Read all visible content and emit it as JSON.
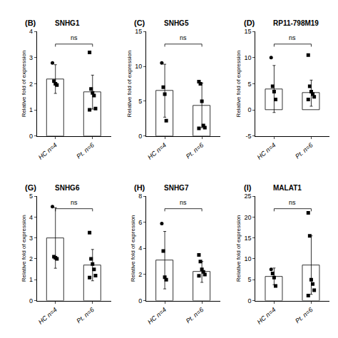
{
  "chart_data": [
    {
      "type": "bar",
      "title": "SNHG1",
      "ylabel": "Relative fold of expression",
      "categories": [
        "HC n=4",
        "Pt. n=6"
      ],
      "ylim": [
        0,
        4
      ],
      "yticks": [
        0,
        1,
        2,
        3,
        4
      ],
      "grid": false,
      "series": [
        {
          "type": "bar",
          "color": "#ffffff",
          "values": [
            2.18,
            1.68
          ],
          "errors": [
            0.55,
            0.65
          ]
        },
        {
          "type": "scatter",
          "marker": "circle",
          "color": "#000000",
          "x": [
            "HC n=4"
          ],
          "values": [
            2.8
          ]
        },
        {
          "type": "scatter",
          "marker": "square",
          "color": "#000000",
          "x": [
            "HC n=4",
            "HC n=4",
            "HC n=4",
            "Pt. n=6",
            "Pt. n=6",
            "Pt. n=6",
            "Pt. n=6",
            "Pt. n=6",
            "Pt. n=6"
          ],
          "values": [
            2.1,
            2.0,
            1.95,
            3.2,
            1.8,
            1.65,
            1.55,
            1.05,
            1.0
          ]
        }
      ],
      "annotations": [
        {
          "text": "(B)"
        },
        {
          "text": "ns",
          "from": "HC n=4",
          "to": "Pt. n=6"
        }
      ]
    },
    {
      "type": "bar",
      "title": "SNHG5",
      "ylabel": "Relative fold of expression",
      "categories": [
        "HC n=4",
        "Pt. n=6"
      ],
      "ylim": [
        0,
        15
      ],
      "yticks": [
        0,
        5,
        10,
        15
      ],
      "grid": false,
      "series": [
        {
          "type": "bar",
          "color": "#ffffff",
          "values": [
            6.5,
            4.4
          ],
          "errors": [
            3.8,
            3.2
          ]
        },
        {
          "type": "scatter",
          "marker": "circle",
          "color": "#000000",
          "x": [
            "HC n=4"
          ],
          "values": [
            10.5
          ]
        },
        {
          "type": "scatter",
          "marker": "square",
          "color": "#000000",
          "x": [
            "HC n=4",
            "HC n=4",
            "HC n=4",
            "Pt. n=6",
            "Pt. n=6",
            "Pt. n=6",
            "Pt. n=6",
            "Pt. n=6",
            "Pt. n=6"
          ],
          "values": [
            7.0,
            6.0,
            2.2,
            7.8,
            7.5,
            5.0,
            1.5,
            1.2,
            1.1
          ]
        }
      ],
      "annotations": [
        {
          "text": "(C)"
        },
        {
          "text": "ns",
          "from": "HC n=4",
          "to": "Pt. n=6"
        }
      ]
    },
    {
      "type": "bar",
      "title": "RP11-798M19",
      "ylabel": "Relative fold of expression",
      "categories": [
        "HC n=4",
        "Pt. n=6"
      ],
      "ylim": [
        -5,
        15
      ],
      "yticks": [
        -5,
        0,
        5,
        10,
        15
      ],
      "grid": false,
      "series": [
        {
          "type": "bar",
          "color": "#ffffff",
          "values": [
            4.0,
            3.2
          ],
          "errors": [
            4.5,
            2.5
          ]
        },
        {
          "type": "scatter",
          "marker": "circle",
          "color": "#000000",
          "x": [
            "HC n=4"
          ],
          "values": [
            10.0
          ]
        },
        {
          "type": "scatter",
          "marker": "square",
          "color": "#000000",
          "x": [
            "HC n=4",
            "HC n=4",
            "HC n=4",
            "Pt. n=6",
            "Pt. n=6",
            "Pt. n=6",
            "Pt. n=6",
            "Pt. n=6",
            "Pt. n=6"
          ],
          "values": [
            4.5,
            3.5,
            2.0,
            10.5,
            4.5,
            3.5,
            3.0,
            2.5,
            2.0
          ]
        }
      ],
      "annotations": [
        {
          "text": "(D)"
        },
        {
          "text": "ns",
          "from": "HC n=4",
          "to": "Pt. n=6"
        }
      ]
    },
    {
      "type": "bar",
      "title": "SNHG6",
      "ylabel": "Relative fold of expression",
      "categories": [
        "HC n=4",
        "Pt. n=6"
      ],
      "ylim": [
        0,
        5
      ],
      "yticks": [
        0,
        1,
        2,
        3,
        4,
        5
      ],
      "grid": false,
      "series": [
        {
          "type": "bar",
          "color": "#ffffff",
          "values": [
            3.0,
            1.7
          ],
          "errors": [
            1.45,
            0.75
          ]
        },
        {
          "type": "scatter",
          "marker": "circle",
          "color": "#000000",
          "x": [
            "HC n=4"
          ],
          "values": [
            4.5
          ]
        },
        {
          "type": "scatter",
          "marker": "square",
          "color": "#000000",
          "x": [
            "HC n=4",
            "HC n=4",
            "HC n=4",
            "Pt. n=6",
            "Pt. n=6",
            "Pt. n=6",
            "Pt. n=6",
            "Pt. n=6",
            "Pt. n=6"
          ],
          "values": [
            2.1,
            2.05,
            2.0,
            3.25,
            2.0,
            1.75,
            1.5,
            1.2,
            1.1
          ]
        }
      ],
      "annotations": [
        {
          "text": "(G)"
        },
        {
          "text": "ns",
          "from": "HC n=4",
          "to": "Pt. n=6"
        }
      ]
    },
    {
      "type": "bar",
      "title": "SNHG7",
      "ylabel": "Relative fold of expression",
      "categories": [
        "HC n=4",
        "Pt. n=6"
      ],
      "ylim": [
        0,
        8
      ],
      "yticks": [
        0,
        2,
        4,
        6,
        8
      ],
      "grid": false,
      "series": [
        {
          "type": "bar",
          "color": "#ffffff",
          "values": [
            3.1,
            2.2
          ],
          "errors": [
            2.2,
            0.8
          ]
        },
        {
          "type": "scatter",
          "marker": "circle",
          "color": "#000000",
          "x": [
            "HC n=4"
          ],
          "values": [
            5.9
          ]
        },
        {
          "type": "scatter",
          "marker": "square",
          "color": "#000000",
          "x": [
            "HC n=4",
            "HC n=4",
            "HC n=4",
            "Pt. n=6",
            "Pt. n=6",
            "Pt. n=6",
            "Pt. n=6",
            "Pt. n=6",
            "Pt. n=6"
          ],
          "values": [
            3.8,
            1.8,
            1.6,
            3.5,
            3.0,
            2.4,
            2.2,
            2.0,
            1.9
          ]
        }
      ],
      "annotations": [
        {
          "text": "(H)"
        },
        {
          "text": "ns",
          "from": "HC n=4",
          "to": "Pt. n=6"
        }
      ]
    },
    {
      "type": "bar",
      "title": "MALAT1",
      "ylabel": "Relative fold of expression",
      "categories": [
        "HC n=4",
        "Pt. n=6"
      ],
      "ylim": [
        0,
        25
      ],
      "yticks": [
        0,
        5,
        10,
        15,
        20,
        25
      ],
      "grid": false,
      "series": [
        {
          "type": "bar",
          "color": "#ffffff",
          "values": [
            5.8,
            8.5
          ],
          "errors": [
            2.0,
            7.0
          ]
        },
        {
          "type": "scatter",
          "marker": "circle",
          "color": "#000000",
          "x": [
            "HC n=4"
          ],
          "values": [
            7.5
          ]
        },
        {
          "type": "scatter",
          "marker": "square",
          "color": "#000000",
          "x": [
            "HC n=4",
            "HC n=4",
            "HC n=4",
            "Pt. n=6",
            "Pt. n=6",
            "Pt. n=6",
            "Pt. n=6",
            "Pt. n=6",
            "Pt. n=6"
          ],
          "values": [
            6.5,
            5.5,
            3.5,
            21.0,
            15.5,
            5.0,
            4.0,
            2.5,
            1.2
          ]
        }
      ],
      "annotations": [
        {
          "text": "(I)"
        },
        {
          "text": "ns",
          "from": "HC n=4",
          "to": "Pt. n=6"
        }
      ]
    }
  ]
}
